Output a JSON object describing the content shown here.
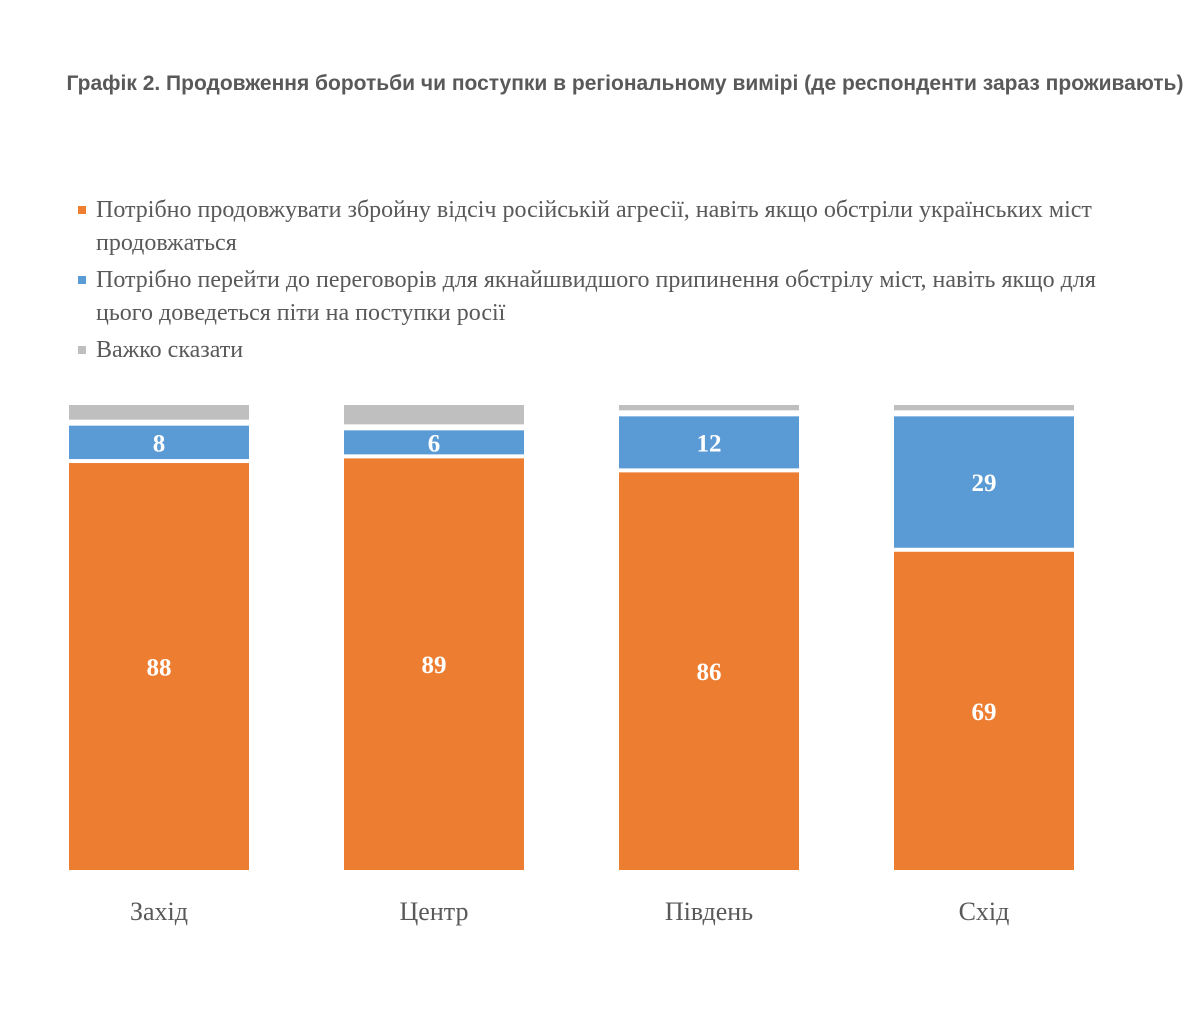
{
  "chart_data": {
    "type": "bar",
    "stacked": true,
    "title": "Графік 2. Продовження боротьби чи поступки в регіональному вимірі (де респонденти зараз проживають)",
    "categories": [
      "Захід",
      "Центр",
      "Південь",
      "Схід"
    ],
    "series": [
      {
        "name": "Потрібно продовжувати збройну відсіч російській агресії, навіть якщо обстріли українських міст продовжаться",
        "color": "#ED7D31",
        "values": [
          88,
          89,
          86,
          69
        ],
        "labels": [
          "88",
          "89",
          "86",
          "69"
        ]
      },
      {
        "name": "Потрібно перейти до переговорів для якнайшвидшого припинення обстрілу міст, навіть якщо для цього доведеться піти на поступки росії",
        "color": "#5B9BD5",
        "values": [
          8,
          6,
          12,
          29
        ],
        "labels": [
          "8",
          "6",
          "12",
          "29"
        ]
      },
      {
        "name": "Важко сказати",
        "color": "#BFBFBF",
        "values": [
          4,
          5,
          2,
          2
        ]
      }
    ],
    "ylim": [
      0,
      100
    ],
    "legend_position": "top-left",
    "grid": false
  }
}
